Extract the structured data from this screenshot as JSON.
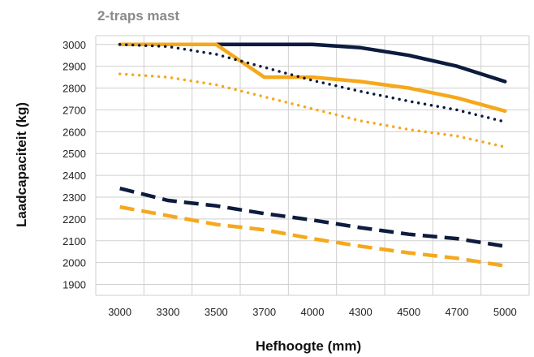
{
  "chart_data": {
    "type": "line",
    "title": "2-traps mast",
    "xlabel": "Hefhoogte (mm)",
    "ylabel": "Laadcapaciteit (kg)",
    "categories": [
      "3000",
      "3300",
      "3500",
      "3700",
      "4000",
      "4300",
      "4500",
      "4700",
      "5000"
    ],
    "yticks": [
      3000,
      2900,
      2800,
      2700,
      2600,
      2500,
      2400,
      2300,
      2200,
      2100,
      2000,
      1900
    ],
    "ylim": [
      1850,
      3040
    ],
    "grid": true,
    "legend": "none",
    "colors": {
      "navy": "#0d1b3e",
      "orange": "#f5a81c",
      "grid": "#cfcfcf"
    },
    "series": [
      {
        "color": "navy",
        "style": "solid",
        "values": [
          3000,
          3000,
          3000,
          3000,
          3000,
          2985,
          2950,
          2900,
          2830
        ]
      },
      {
        "color": "orange",
        "style": "solid",
        "values": [
          3000,
          3000,
          3000,
          2850,
          2850,
          2830,
          2800,
          2755,
          2695
        ]
      },
      {
        "color": "navy",
        "style": "dotted",
        "values": [
          3000,
          2990,
          2955,
          2895,
          2835,
          2785,
          2740,
          2700,
          2645
        ]
      },
      {
        "color": "orange",
        "style": "dotted",
        "values": [
          2865,
          2850,
          2815,
          2760,
          2705,
          2650,
          2610,
          2580,
          2530
        ]
      },
      {
        "color": "navy",
        "style": "dashed",
        "values": [
          2340,
          2285,
          2260,
          2225,
          2195,
          2160,
          2130,
          2110,
          2075
        ]
      },
      {
        "color": "orange",
        "style": "dashed",
        "values": [
          2255,
          2215,
          2175,
          2150,
          2110,
          2075,
          2045,
          2020,
          1985
        ]
      }
    ]
  }
}
